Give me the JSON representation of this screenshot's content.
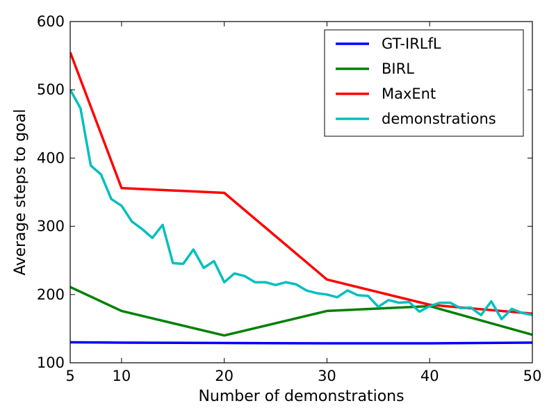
{
  "chart_data": {
    "type": "line",
    "xlabel": "Number of demonstrations",
    "ylabel": "Average steps to goal",
    "xlim": [
      5,
      50
    ],
    "ylim": [
      100,
      600
    ],
    "xticks": [
      5,
      10,
      20,
      30,
      40,
      50
    ],
    "yticks": [
      100,
      200,
      300,
      400,
      500,
      600
    ],
    "grid": false,
    "legend_position": "top-right",
    "series": [
      {
        "name": "GT-IRLfL",
        "color": "#0000ff",
        "x": [
          5,
          10,
          20,
          30,
          40,
          50
        ],
        "y": [
          130,
          129.5,
          129,
          128.5,
          128.5,
          129.5
        ]
      },
      {
        "name": "BIRL",
        "color": "#008000",
        "x": [
          5,
          10,
          20,
          30,
          40,
          50
        ],
        "y": [
          211,
          176,
          140,
          176,
          183,
          141
        ]
      },
      {
        "name": "MaxEnt",
        "color": "#ff0000",
        "x": [
          5,
          10,
          20,
          30,
          40,
          50
        ],
        "y": [
          555,
          356,
          349,
          222,
          185,
          172
        ]
      },
      {
        "name": "demonstrations",
        "color": "#00bfbf",
        "x": [
          5,
          6,
          7,
          8,
          9,
          10,
          11,
          12,
          13,
          14,
          15,
          16,
          17,
          18,
          19,
          20,
          21,
          22,
          23,
          24,
          25,
          26,
          27,
          28,
          29,
          30,
          31,
          32,
          33,
          34,
          35,
          36,
          37,
          38,
          39,
          40,
          41,
          42,
          43,
          44,
          45,
          46,
          47,
          48,
          49,
          50
        ],
        "y": [
          500,
          473,
          389,
          376,
          340,
          330,
          307,
          296,
          283,
          302,
          246,
          245,
          266,
          239,
          249,
          218,
          231,
          227,
          218,
          218,
          214,
          218,
          215,
          206,
          202,
          200,
          196,
          206,
          199,
          198,
          182,
          192,
          188,
          189,
          175,
          183,
          188,
          188,
          180,
          181,
          170,
          190,
          164,
          179,
          173,
          170
        ]
      }
    ]
  }
}
